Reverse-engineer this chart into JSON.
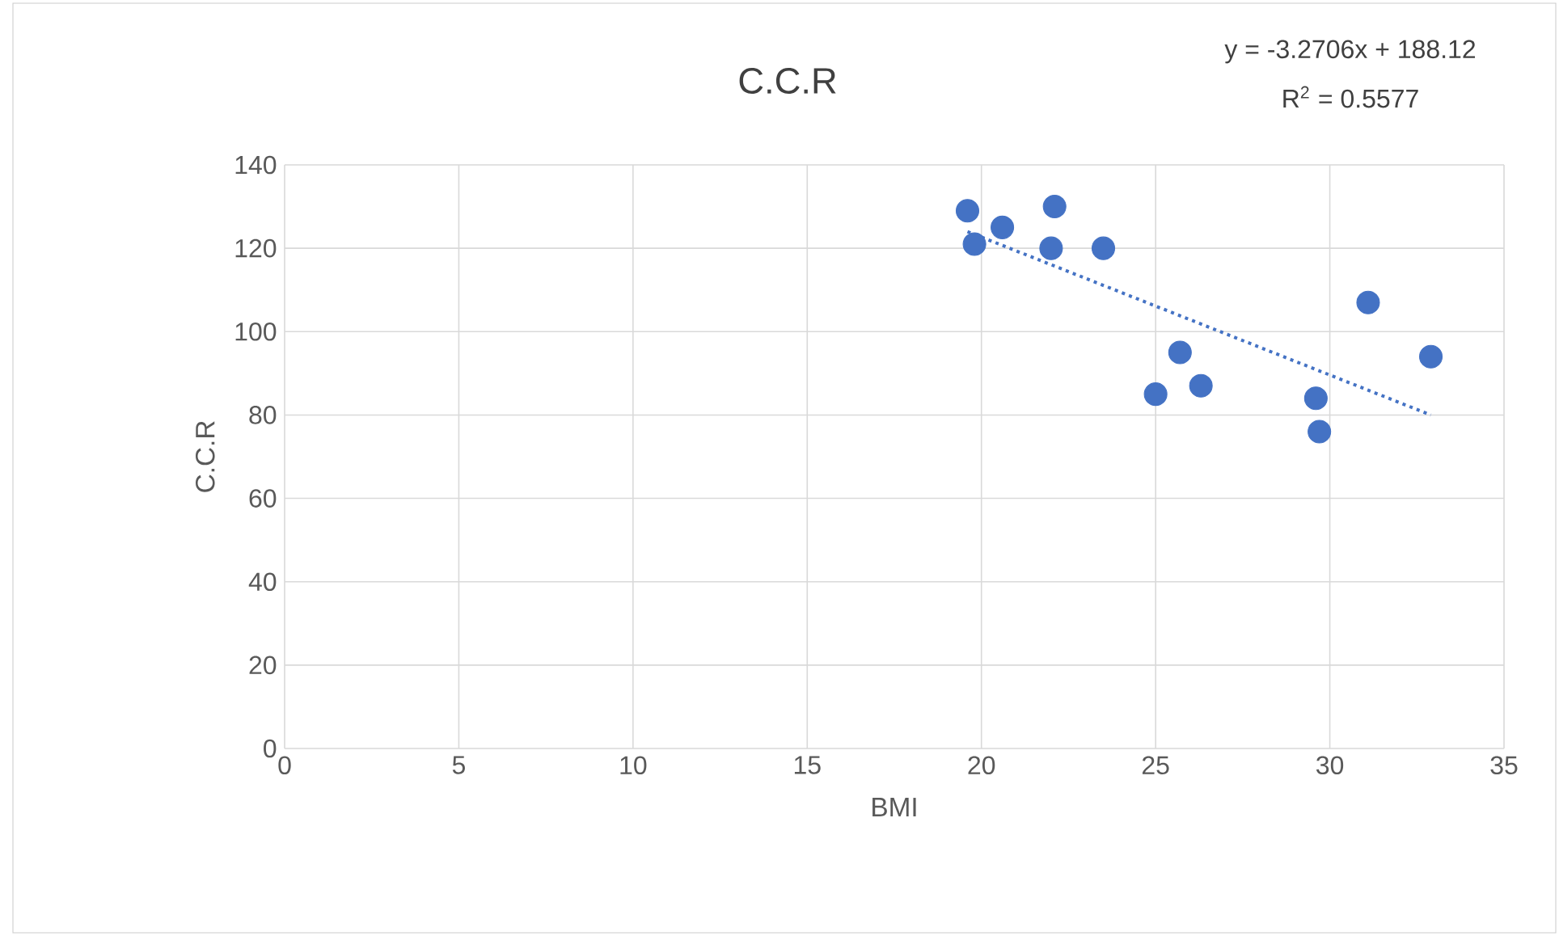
{
  "chart_data": {
    "type": "scatter",
    "title": "C.C.R",
    "xlabel": "BMI",
    "ylabel": "C.C.R",
    "annotations": [
      "y = -3.2706x + 188.12",
      "R$^{2}$ = 0.5577"
    ],
    "xlim": [
      0,
      35
    ],
    "ylim": [
      0,
      140
    ],
    "xticks": [
      0,
      5,
      10,
      15,
      20,
      25,
      30,
      35
    ],
    "yticks": [
      0,
      20,
      40,
      60,
      80,
      100,
      120,
      140
    ],
    "grid": true,
    "series": [
      {
        "marker": "circle",
        "color": "#4472c4",
        "x": [
          19.6,
          19.8,
          20.6,
          22.1,
          22.0,
          23.5,
          25.0,
          25.7,
          26.3,
          29.6,
          29.7,
          31.1,
          32.9
        ],
        "values": [
          129,
          121,
          125,
          130,
          120,
          120,
          85,
          95,
          87,
          84,
          76,
          107,
          94
        ]
      },
      {
        "type": "line",
        "marker": "none",
        "color": "#4472c4",
        "line_style": "dotted",
        "x": [
          19.6,
          32.9
        ],
        "values": [
          124,
          80
        ]
      }
    ]
  }
}
